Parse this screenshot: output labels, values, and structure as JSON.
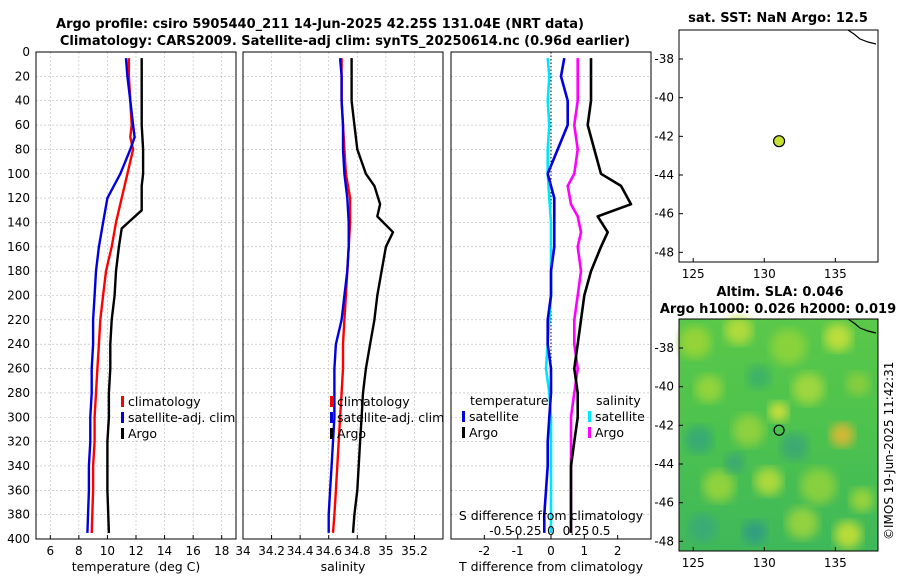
{
  "figure": {
    "title_line1": "Argo profile: csiro 5905440_211 14-Jun-2025 42.25S 131.04E (NRT data)",
    "title_line2": "Climatology: CARS2009. Satellite-adj clim: synTS_20250614.nc (0.96d earlier)",
    "imos_stamp": "©IMOS 19-Jun-2025 11:42:31"
  },
  "colors": {
    "clim": "#ff0000",
    "sat": "#0000dd",
    "argo": "#000000",
    "t_diff": "#0000dd",
    "s_diff": "#ff00ff",
    "s_diff_line": "#00e5ff"
  },
  "depth_axis": {
    "range": [
      0,
      400
    ],
    "ticks": [
      0,
      20,
      40,
      60,
      80,
      100,
      120,
      140,
      160,
      180,
      200,
      220,
      240,
      260,
      280,
      300,
      320,
      340,
      360,
      380,
      400
    ]
  },
  "chart_data": [
    {
      "type": "line",
      "name": "temperature-profile",
      "xlabel": "temperature (deg C)",
      "xlim": [
        5,
        19
      ],
      "xticks": [
        6,
        8,
        10,
        12,
        14,
        16,
        18
      ],
      "ylim": [
        0,
        400
      ],
      "legend": [
        "climatology",
        "satellite-adj. clim",
        "Argo"
      ],
      "series": [
        {
          "name": "climatology",
          "color": "#ff0000",
          "x": [
            11.5,
            11.5,
            11.6,
            11.7,
            11.6,
            11.8,
            11.4,
            11.0,
            10.6,
            10.3,
            9.9,
            9.7,
            9.5,
            9.4,
            9.3,
            9.2,
            9.1,
            9.1,
            9.0,
            9.0,
            8.9
          ],
          "y": [
            5,
            20,
            40,
            60,
            70,
            80,
            100,
            120,
            140,
            160,
            180,
            200,
            220,
            240,
            260,
            280,
            300,
            320,
            340,
            360,
            395
          ]
        },
        {
          "name": "satellite-adj. clim",
          "color": "#0000dd",
          "x": [
            11.3,
            11.4,
            11.6,
            11.8,
            11.9,
            11.6,
            10.9,
            10.0,
            9.7,
            9.4,
            9.2,
            9.1,
            9.0,
            9.0,
            8.9,
            8.9,
            8.8,
            8.8,
            8.7,
            8.7,
            8.6
          ],
          "y": [
            5,
            20,
            40,
            60,
            70,
            80,
            100,
            120,
            140,
            160,
            180,
            200,
            220,
            240,
            260,
            280,
            300,
            320,
            340,
            360,
            395
          ]
        },
        {
          "name": "Argo",
          "color": "#000000",
          "x": [
            12.4,
            12.4,
            12.4,
            12.4,
            12.5,
            12.5,
            12.4,
            12.4,
            12.4,
            11.0,
            10.8,
            10.6,
            10.5,
            10.3,
            10.2,
            10.2,
            10.1,
            10.1,
            10.0,
            10.0,
            10.0,
            10.1
          ],
          "y": [
            5,
            20,
            40,
            60,
            80,
            100,
            110,
            120,
            130,
            145,
            160,
            180,
            200,
            220,
            240,
            260,
            280,
            300,
            320,
            340,
            360,
            395
          ]
        }
      ]
    },
    {
      "type": "line",
      "name": "salinity-profile",
      "xlabel": "salinity",
      "xlim": [
        34,
        35.4
      ],
      "xticks": [
        34,
        34.2,
        34.4,
        34.6,
        34.8,
        35,
        35.2
      ],
      "tick_labels": [
        "34",
        "34.2",
        "34.4",
        "34.6",
        "34.8",
        "35",
        "35.2"
      ],
      "ylim": [
        0,
        400
      ],
      "legend": [
        "climatology",
        "satellite-adj. clim",
        "Argo"
      ],
      "series": [
        {
          "name": "climatology",
          "color": "#ff0000",
          "x": [
            34.69,
            34.69,
            34.69,
            34.7,
            34.71,
            34.72,
            34.75,
            34.75,
            34.74,
            34.73,
            34.72,
            34.71,
            34.7,
            34.7,
            34.69,
            34.68,
            34.67,
            34.66,
            34.65,
            34.64,
            34.63
          ],
          "y": [
            5,
            20,
            40,
            60,
            80,
            100,
            120,
            140,
            160,
            180,
            200,
            220,
            240,
            260,
            280,
            300,
            320,
            340,
            360,
            380,
            395
          ]
        },
        {
          "name": "satellite-adj. clim",
          "color": "#0000dd",
          "x": [
            34.68,
            34.69,
            34.69,
            34.7,
            34.7,
            34.71,
            34.73,
            34.74,
            34.74,
            34.73,
            34.71,
            34.69,
            34.65,
            34.64,
            34.64,
            34.64,
            34.63,
            34.62,
            34.61,
            34.6,
            34.6
          ],
          "y": [
            5,
            20,
            40,
            60,
            80,
            100,
            120,
            140,
            160,
            180,
            200,
            220,
            240,
            260,
            280,
            300,
            320,
            340,
            360,
            380,
            395
          ]
        },
        {
          "name": "Argo",
          "color": "#000000",
          "x": [
            34.76,
            34.76,
            34.76,
            34.78,
            34.8,
            34.86,
            34.92,
            34.96,
            34.94,
            35.05,
            35.0,
            34.97,
            34.94,
            34.92,
            34.89,
            34.86,
            34.84,
            34.83,
            34.82,
            34.81,
            34.8,
            34.78,
            34.77
          ],
          "y": [
            5,
            20,
            40,
            60,
            80,
            100,
            110,
            125,
            135,
            148,
            160,
            180,
            200,
            220,
            240,
            260,
            280,
            300,
            320,
            340,
            360,
            380,
            395
          ]
        }
      ]
    },
    {
      "type": "line",
      "name": "difference-profile",
      "xlabel": "T difference from climatology",
      "xlabel_top": "S difference from climatology",
      "xlim": [
        -3,
        3
      ],
      "xticks": [
        -2,
        -1,
        0,
        1,
        2
      ],
      "tick_labels": [
        "-2",
        "-1",
        "0",
        "1",
        "2"
      ],
      "xticks_top": [
        -1.5,
        -0.75,
        0,
        0.75,
        1.5
      ],
      "tick_labels_top": [
        "-0.5",
        "-0.25",
        "0",
        "0.25",
        "0.5"
      ],
      "ylim": [
        0,
        400
      ],
      "legend_left": [
        "temperature",
        "satellite",
        "Argo"
      ],
      "legend_right": [
        "salinity",
        "satellite",
        "Argo"
      ],
      "series": [
        {
          "name": "T satellite",
          "color": "#00e5ff",
          "x": [
            -0.1,
            -0.05,
            -0.1,
            -0.05,
            -0.1,
            -0.1,
            -0.05,
            0.0,
            0.0,
            0.0,
            0.0,
            -0.05,
            -0.1,
            -0.15,
            -0.05,
            0.0,
            0.0,
            0.0,
            0.0,
            0.0,
            0.0
          ],
          "y": [
            5,
            20,
            40,
            60,
            80,
            100,
            120,
            140,
            160,
            180,
            200,
            220,
            240,
            260,
            280,
            300,
            320,
            340,
            360,
            380,
            395
          ]
        },
        {
          "name": "T Argo",
          "color": "#0000dd",
          "x": [
            0.4,
            0.3,
            0.5,
            0.5,
            0.2,
            -0.1,
            0.1,
            0.1,
            0.1,
            0.0,
            0.0,
            -0.1,
            -0.1,
            0.0,
            0.0,
            -0.05,
            -0.1,
            -0.1,
            -0.15,
            -0.2,
            -0.2
          ],
          "y": [
            5,
            20,
            40,
            60,
            80,
            100,
            120,
            140,
            160,
            180,
            200,
            220,
            240,
            260,
            280,
            300,
            320,
            340,
            360,
            380,
            395
          ]
        },
        {
          "name": "S satellite",
          "color": "#ff00ff",
          "x": [
            0.8,
            0.8,
            0.8,
            0.7,
            0.8,
            0.7,
            0.5,
            0.6,
            0.8,
            0.9,
            0.8,
            0.9,
            0.8,
            0.7,
            0.7,
            0.8,
            0.7,
            0.6,
            0.6,
            0.6,
            0.6,
            0.6,
            0.6
          ],
          "y": [
            5,
            20,
            40,
            60,
            80,
            100,
            110,
            125,
            135,
            148,
            160,
            180,
            200,
            220,
            240,
            260,
            280,
            300,
            320,
            340,
            360,
            380,
            395
          ]
        },
        {
          "name": "S Argo",
          "color": "#000000",
          "x": [
            1.2,
            1.2,
            1.2,
            1.1,
            1.3,
            1.5,
            2.1,
            2.4,
            1.4,
            1.7,
            1.5,
            1.2,
            1.0,
            0.9,
            0.8,
            0.7,
            0.8,
            0.8,
            0.7,
            0.6,
            0.6,
            0.6,
            0.6
          ],
          "y": [
            5,
            20,
            40,
            60,
            80,
            100,
            110,
            125,
            135,
            148,
            160,
            180,
            200,
            220,
            240,
            260,
            280,
            300,
            320,
            340,
            360,
            380,
            395
          ]
        }
      ]
    },
    {
      "type": "scatter",
      "name": "sst-map",
      "title": "sat. SST: NaN Argo: 12.5",
      "xlim": [
        124,
        138
      ],
      "ylim": [
        -48.5,
        -36.5
      ],
      "xticks": [
        125,
        130,
        135
      ],
      "yticks": [
        -38,
        -40,
        -42,
        -44,
        -46,
        -48
      ],
      "points": [
        {
          "lon": 131.04,
          "lat": -42.25
        }
      ]
    },
    {
      "type": "heatmap",
      "name": "sla-map",
      "title_line1": "Altim. SLA: 0.046",
      "title_line2": "Argo h1000: 0.026 h2000: 0.019",
      "xlim": [
        124,
        138
      ],
      "ylim": [
        -48.5,
        -36.5
      ],
      "xticks": [
        125,
        130,
        135
      ],
      "yticks": [
        -38,
        -40,
        -42,
        -44,
        -46,
        -48
      ],
      "points": [
        {
          "lon": 131.04,
          "lat": -42.25
        }
      ]
    }
  ]
}
